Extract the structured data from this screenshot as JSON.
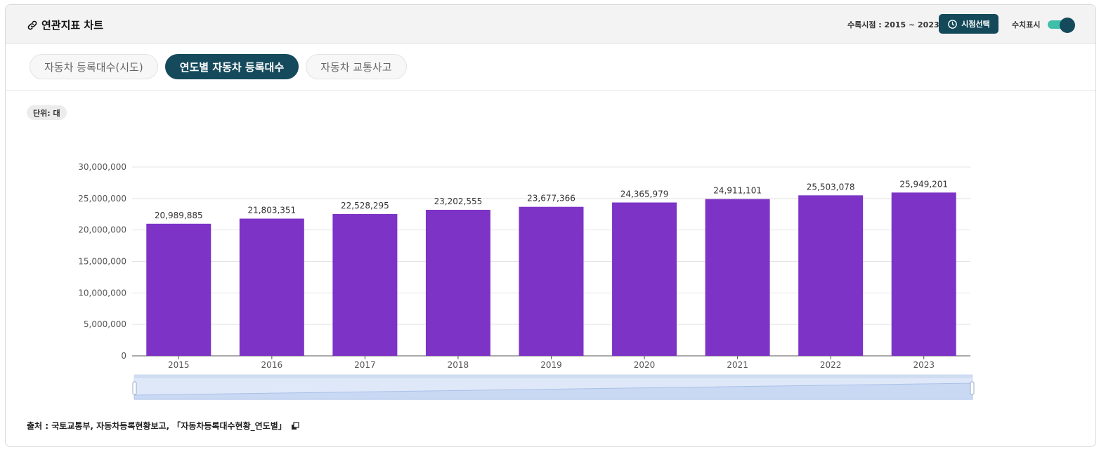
{
  "header": {
    "title": "연관지표 차트",
    "period_label": "수록시점 : 2015 ~ 2023",
    "period_button": "시점선택",
    "values_toggle_label": "수치표시",
    "values_toggle_on": true
  },
  "tabs": [
    {
      "label": "자동차 등록대수(시도)",
      "active": false
    },
    {
      "label": "연도별 자동차 등록대수",
      "active": true
    },
    {
      "label": "자동차 교통사고",
      "active": false
    }
  ],
  "unit_label": "단위: 대",
  "source": {
    "text": "출처 :  국토교통부, 자동차등록현황보고, 「자동차등록대수현황_연도별」"
  },
  "colors": {
    "bar": "#7d33c6",
    "accent": "#154a5c",
    "toggle_track": "#3fbfaa"
  },
  "chart_data": {
    "type": "bar",
    "categories": [
      "2015",
      "2016",
      "2017",
      "2018",
      "2019",
      "2020",
      "2021",
      "2022",
      "2023"
    ],
    "values": [
      20989885,
      21803351,
      22528295,
      23202555,
      23677366,
      24365979,
      24911101,
      25503078,
      25949201
    ],
    "data_labels": [
      "20,989,885",
      "21,803,351",
      "22,528,295",
      "23,202,555",
      "23,677,366",
      "24,365,979",
      "24,911,101",
      "25,503,078",
      "25,949,201"
    ],
    "y_ticks": [
      "0",
      "5,000,000",
      "10,000,000",
      "15,000,000",
      "20,000,000",
      "25,000,000",
      "30,000,000"
    ],
    "ylim": [
      0,
      30000000
    ],
    "grid": true,
    "data_zoom": true
  }
}
